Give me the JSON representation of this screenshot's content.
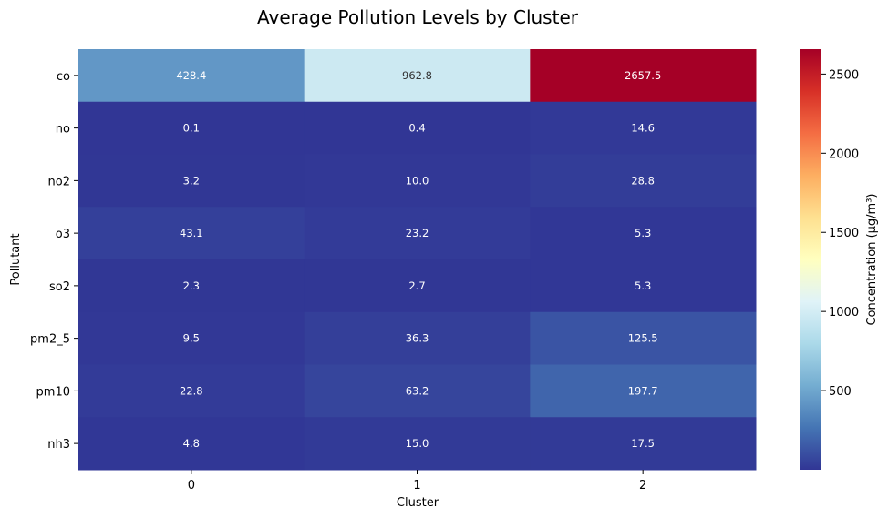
{
  "chart_data": {
    "type": "heatmap",
    "title": "Average Pollution Levels by Cluster",
    "xlabel": "Cluster",
    "ylabel": "Pollutant",
    "x_categories": [
      "0",
      "1",
      "2"
    ],
    "y_categories": [
      "co",
      "no",
      "no2",
      "o3",
      "so2",
      "pm2_5",
      "pm10",
      "nh3"
    ],
    "values": [
      [
        428.4,
        962.8,
        2657.5
      ],
      [
        0.1,
        0.4,
        14.6
      ],
      [
        3.2,
        10.0,
        28.8
      ],
      [
        43.1,
        23.2,
        5.3
      ],
      [
        2.3,
        2.7,
        5.3
      ],
      [
        9.5,
        36.3,
        125.5
      ],
      [
        22.8,
        63.2,
        197.7
      ],
      [
        4.8,
        15.0,
        17.5
      ]
    ],
    "value_format": "0.1f",
    "colormap": "RdYlBu_r",
    "colorbar": {
      "label": "Concentration (μg/m³)",
      "ticks": [
        500,
        1000,
        1500,
        2000,
        2500
      ],
      "range": [
        0.1,
        2657.5
      ]
    },
    "grid": false,
    "legend": "none"
  }
}
